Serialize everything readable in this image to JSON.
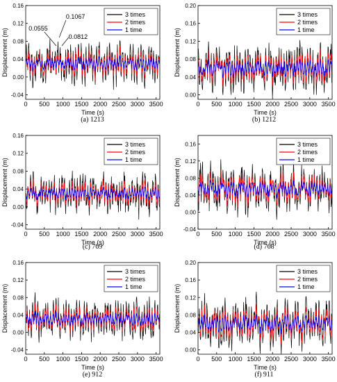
{
  "chart_data": [
    {
      "type": "line",
      "caption": "(a) 1213",
      "xlabel": "Time (s)",
      "ylabel": "Displacement (m)",
      "xlim": [
        0,
        3600
      ],
      "ylim": [
        -0.05,
        0.16
      ],
      "xticks": [
        0,
        500,
        1000,
        1500,
        2000,
        2500,
        3000,
        3500
      ],
      "yticks": [
        -0.04,
        0.0,
        0.04,
        0.08,
        0.12,
        0.16
      ],
      "ytick_labels": [
        "-0.04",
        "0.00",
        "0.04",
        "0.08",
        "0.12",
        "0.16"
      ],
      "legend_position": "top-right",
      "series": [
        {
          "name": "3 times",
          "color": "#000000",
          "mean": 0.03,
          "amplitude": 0.045
        },
        {
          "name": "2 times",
          "color": "#ff0000",
          "mean": 0.03,
          "amplitude": 0.028
        },
        {
          "name": "1 time",
          "color": "#0000ff",
          "mean": 0.03,
          "amplitude": 0.014
        }
      ],
      "annotations": [
        {
          "text": "0.1067",
          "x": 1000,
          "y": 0.1067
        },
        {
          "text": "0.0555",
          "x": 700,
          "y": 0.0555
        },
        {
          "text": "0.0812",
          "x": 1000,
          "y": 0.0812
        }
      ]
    },
    {
      "type": "line",
      "caption": "(b) 1212",
      "xlabel": "Time (s)",
      "ylabel": "Displacement (m)",
      "xlim": [
        0,
        3600
      ],
      "ylim": [
        -0.01,
        0.2
      ],
      "xticks": [
        0,
        500,
        1000,
        1500,
        2000,
        2500,
        3000,
        3500
      ],
      "yticks": [
        0.0,
        0.04,
        0.08,
        0.12,
        0.16,
        0.2
      ],
      "ytick_labels": [
        "0.00",
        "0.04",
        "0.08",
        "0.12",
        "0.16",
        "0.20"
      ],
      "legend_position": "top-right",
      "series": [
        {
          "name": "3 times",
          "color": "#000000",
          "mean": 0.06,
          "amplitude": 0.055
        },
        {
          "name": "2 times",
          "color": "#ff0000",
          "mean": 0.06,
          "amplitude": 0.035
        },
        {
          "name": "1 time",
          "color": "#0000ff",
          "mean": 0.06,
          "amplitude": 0.018
        }
      ]
    },
    {
      "type": "line",
      "caption": "(c) 769",
      "xlabel": "Time (s)",
      "ylabel": "Displacement (m)",
      "xlim": [
        0,
        3600
      ],
      "ylim": [
        -0.05,
        0.16
      ],
      "xticks": [
        0,
        500,
        1000,
        1500,
        2000,
        2500,
        3000,
        3500
      ],
      "yticks": [
        -0.04,
        0.0,
        0.04,
        0.08,
        0.12,
        0.16
      ],
      "ytick_labels": [
        "-0.04",
        "0.00",
        "0.04",
        "0.08",
        "0.12",
        "0.16"
      ],
      "legend_position": "top-right",
      "series": [
        {
          "name": "3 times",
          "color": "#000000",
          "mean": 0.03,
          "amplitude": 0.045
        },
        {
          "name": "2 times",
          "color": "#ff0000",
          "mean": 0.03,
          "amplitude": 0.028
        },
        {
          "name": "1 time",
          "color": "#0000ff",
          "mean": 0.03,
          "amplitude": 0.014
        }
      ]
    },
    {
      "type": "line",
      "caption": "(d) 768",
      "xlabel": "Time (s)",
      "ylabel": "Displacement (m)",
      "xlim": [
        0,
        3600
      ],
      "ylim": [
        -0.04,
        0.18
      ],
      "xticks": [
        0,
        500,
        1000,
        1500,
        2000,
        2500,
        3000,
        3500
      ],
      "yticks": [
        -0.04,
        0.0,
        0.04,
        0.08,
        0.12,
        0.16
      ],
      "ytick_labels": [
        "-0.04",
        "0.00",
        "0.04",
        "0.08",
        "0.12",
        "0.16"
      ],
      "legend_position": "top-right",
      "series": [
        {
          "name": "3 times",
          "color": "#000000",
          "mean": 0.055,
          "amplitude": 0.055
        },
        {
          "name": "2 times",
          "color": "#ff0000",
          "mean": 0.055,
          "amplitude": 0.035
        },
        {
          "name": "1 time",
          "color": "#0000ff",
          "mean": 0.055,
          "amplitude": 0.018
        }
      ]
    },
    {
      "type": "line",
      "caption": "(e) 912",
      "xlabel": "Time (s)",
      "ylabel": "Displacement (m)",
      "xlim": [
        0,
        3600
      ],
      "ylim": [
        -0.05,
        0.16
      ],
      "xticks": [
        0,
        500,
        1000,
        1500,
        2000,
        2500,
        3000,
        3500
      ],
      "yticks": [
        -0.04,
        0.0,
        0.04,
        0.08,
        0.12,
        0.16
      ],
      "ytick_labels": [
        "-0.04",
        "0.00",
        "0.04",
        "0.08",
        "0.12",
        "0.16"
      ],
      "legend_position": "top-right",
      "series": [
        {
          "name": "3 times",
          "color": "#000000",
          "mean": 0.03,
          "amplitude": 0.045
        },
        {
          "name": "2 times",
          "color": "#ff0000",
          "mean": 0.03,
          "amplitude": 0.028
        },
        {
          "name": "1 time",
          "color": "#0000ff",
          "mean": 0.03,
          "amplitude": 0.014
        }
      ]
    },
    {
      "type": "line",
      "caption": "(f) 911",
      "xlabel": "Time (s)",
      "ylabel": "Displacement (m)",
      "xlim": [
        0,
        3600
      ],
      "ylim": [
        -0.01,
        0.2
      ],
      "xticks": [
        0,
        500,
        1000,
        1500,
        2000,
        2500,
        3000,
        3500
      ],
      "yticks": [
        0.0,
        0.04,
        0.08,
        0.12,
        0.16,
        0.2
      ],
      "ytick_labels": [
        "0.00",
        "0.04",
        "0.08",
        "0.12",
        "0.16",
        "0.20"
      ],
      "legend_position": "top-right",
      "series": [
        {
          "name": "3 times",
          "color": "#000000",
          "mean": 0.06,
          "amplitude": 0.055
        },
        {
          "name": "2 times",
          "color": "#ff0000",
          "mean": 0.06,
          "amplitude": 0.035
        },
        {
          "name": "1 time",
          "color": "#0000ff",
          "mean": 0.06,
          "amplitude": 0.018
        }
      ]
    }
  ]
}
